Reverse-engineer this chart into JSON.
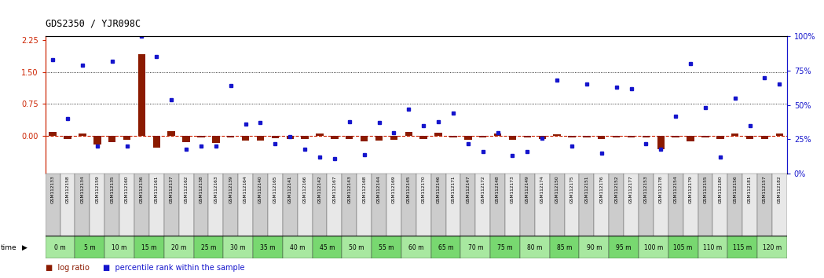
{
  "title": "GDS2350 / YJR098C",
  "samples": [
    "GSM112133",
    "GSM112158",
    "GSM112134",
    "GSM112159",
    "GSM112135",
    "GSM112160",
    "GSM112136",
    "GSM112161",
    "GSM112137",
    "GSM112162",
    "GSM112138",
    "GSM112163",
    "GSM112139",
    "GSM112164",
    "GSM112140",
    "GSM112165",
    "GSM112141",
    "GSM112166",
    "GSM112142",
    "GSM112167",
    "GSM112143",
    "GSM112168",
    "GSM112144",
    "GSM112169",
    "GSM112145",
    "GSM112170",
    "GSM112146",
    "GSM112171",
    "GSM112147",
    "GSM112172",
    "GSM112148",
    "GSM112173",
    "GSM112149",
    "GSM112174",
    "GSM112150",
    "GSM112175",
    "GSM112151",
    "GSM112176",
    "GSM112152",
    "GSM112177",
    "GSM112153",
    "GSM112178",
    "GSM112154",
    "GSM112179",
    "GSM112155",
    "GSM112180",
    "GSM112156",
    "GSM112181",
    "GSM112157",
    "GSM112182"
  ],
  "time_labels": [
    "0 m",
    "5 m",
    "10 m",
    "15 m",
    "20 m",
    "25 m",
    "30 m",
    "35 m",
    "40 m",
    "45 m",
    "50 m",
    "55 m",
    "60 m",
    "65 m",
    "70 m",
    "75 m",
    "80 m",
    "85 m",
    "90 m",
    "95 m",
    "100 m",
    "105 m",
    "110 m",
    "115 m",
    "120 m"
  ],
  "log_ratio": [
    0.08,
    -0.08,
    0.05,
    -0.22,
    -0.15,
    -0.1,
    1.92,
    -0.28,
    0.1,
    -0.15,
    -0.05,
    -0.18,
    -0.05,
    -0.12,
    -0.12,
    -0.06,
    -0.08,
    -0.08,
    0.05,
    -0.08,
    -0.08,
    -0.14,
    -0.12,
    -0.1,
    0.08,
    -0.08,
    0.06,
    -0.05,
    -0.1,
    -0.05,
    0.05,
    -0.1,
    -0.05,
    -0.08,
    0.02,
    -0.05,
    -0.05,
    -0.08,
    -0.05,
    -0.05,
    -0.05,
    -0.32,
    -0.05,
    -0.14,
    -0.05,
    -0.08,
    0.05,
    -0.08,
    -0.08,
    0.05
  ],
  "percentile_rank": [
    83,
    40,
    79,
    20,
    82,
    20,
    100,
    85,
    54,
    18,
    20,
    20,
    64,
    36,
    37,
    22,
    27,
    18,
    12,
    11,
    38,
    14,
    37,
    30,
    47,
    35,
    38,
    44,
    22,
    16,
    30,
    13,
    16,
    26,
    68,
    20,
    65,
    15,
    63,
    62,
    22,
    18,
    42,
    80,
    48,
    12,
    55,
    35,
    70,
    65
  ],
  "ylim_left": [
    -0.9,
    2.35
  ],
  "ylim_right": [
    0,
    100
  ],
  "bar_color": "#8B1A00",
  "dot_color": "#1515CC",
  "zero_line_color": "#CC2200",
  "left_axis_color": "#CC2200",
  "right_axis_color": "#1515CC"
}
